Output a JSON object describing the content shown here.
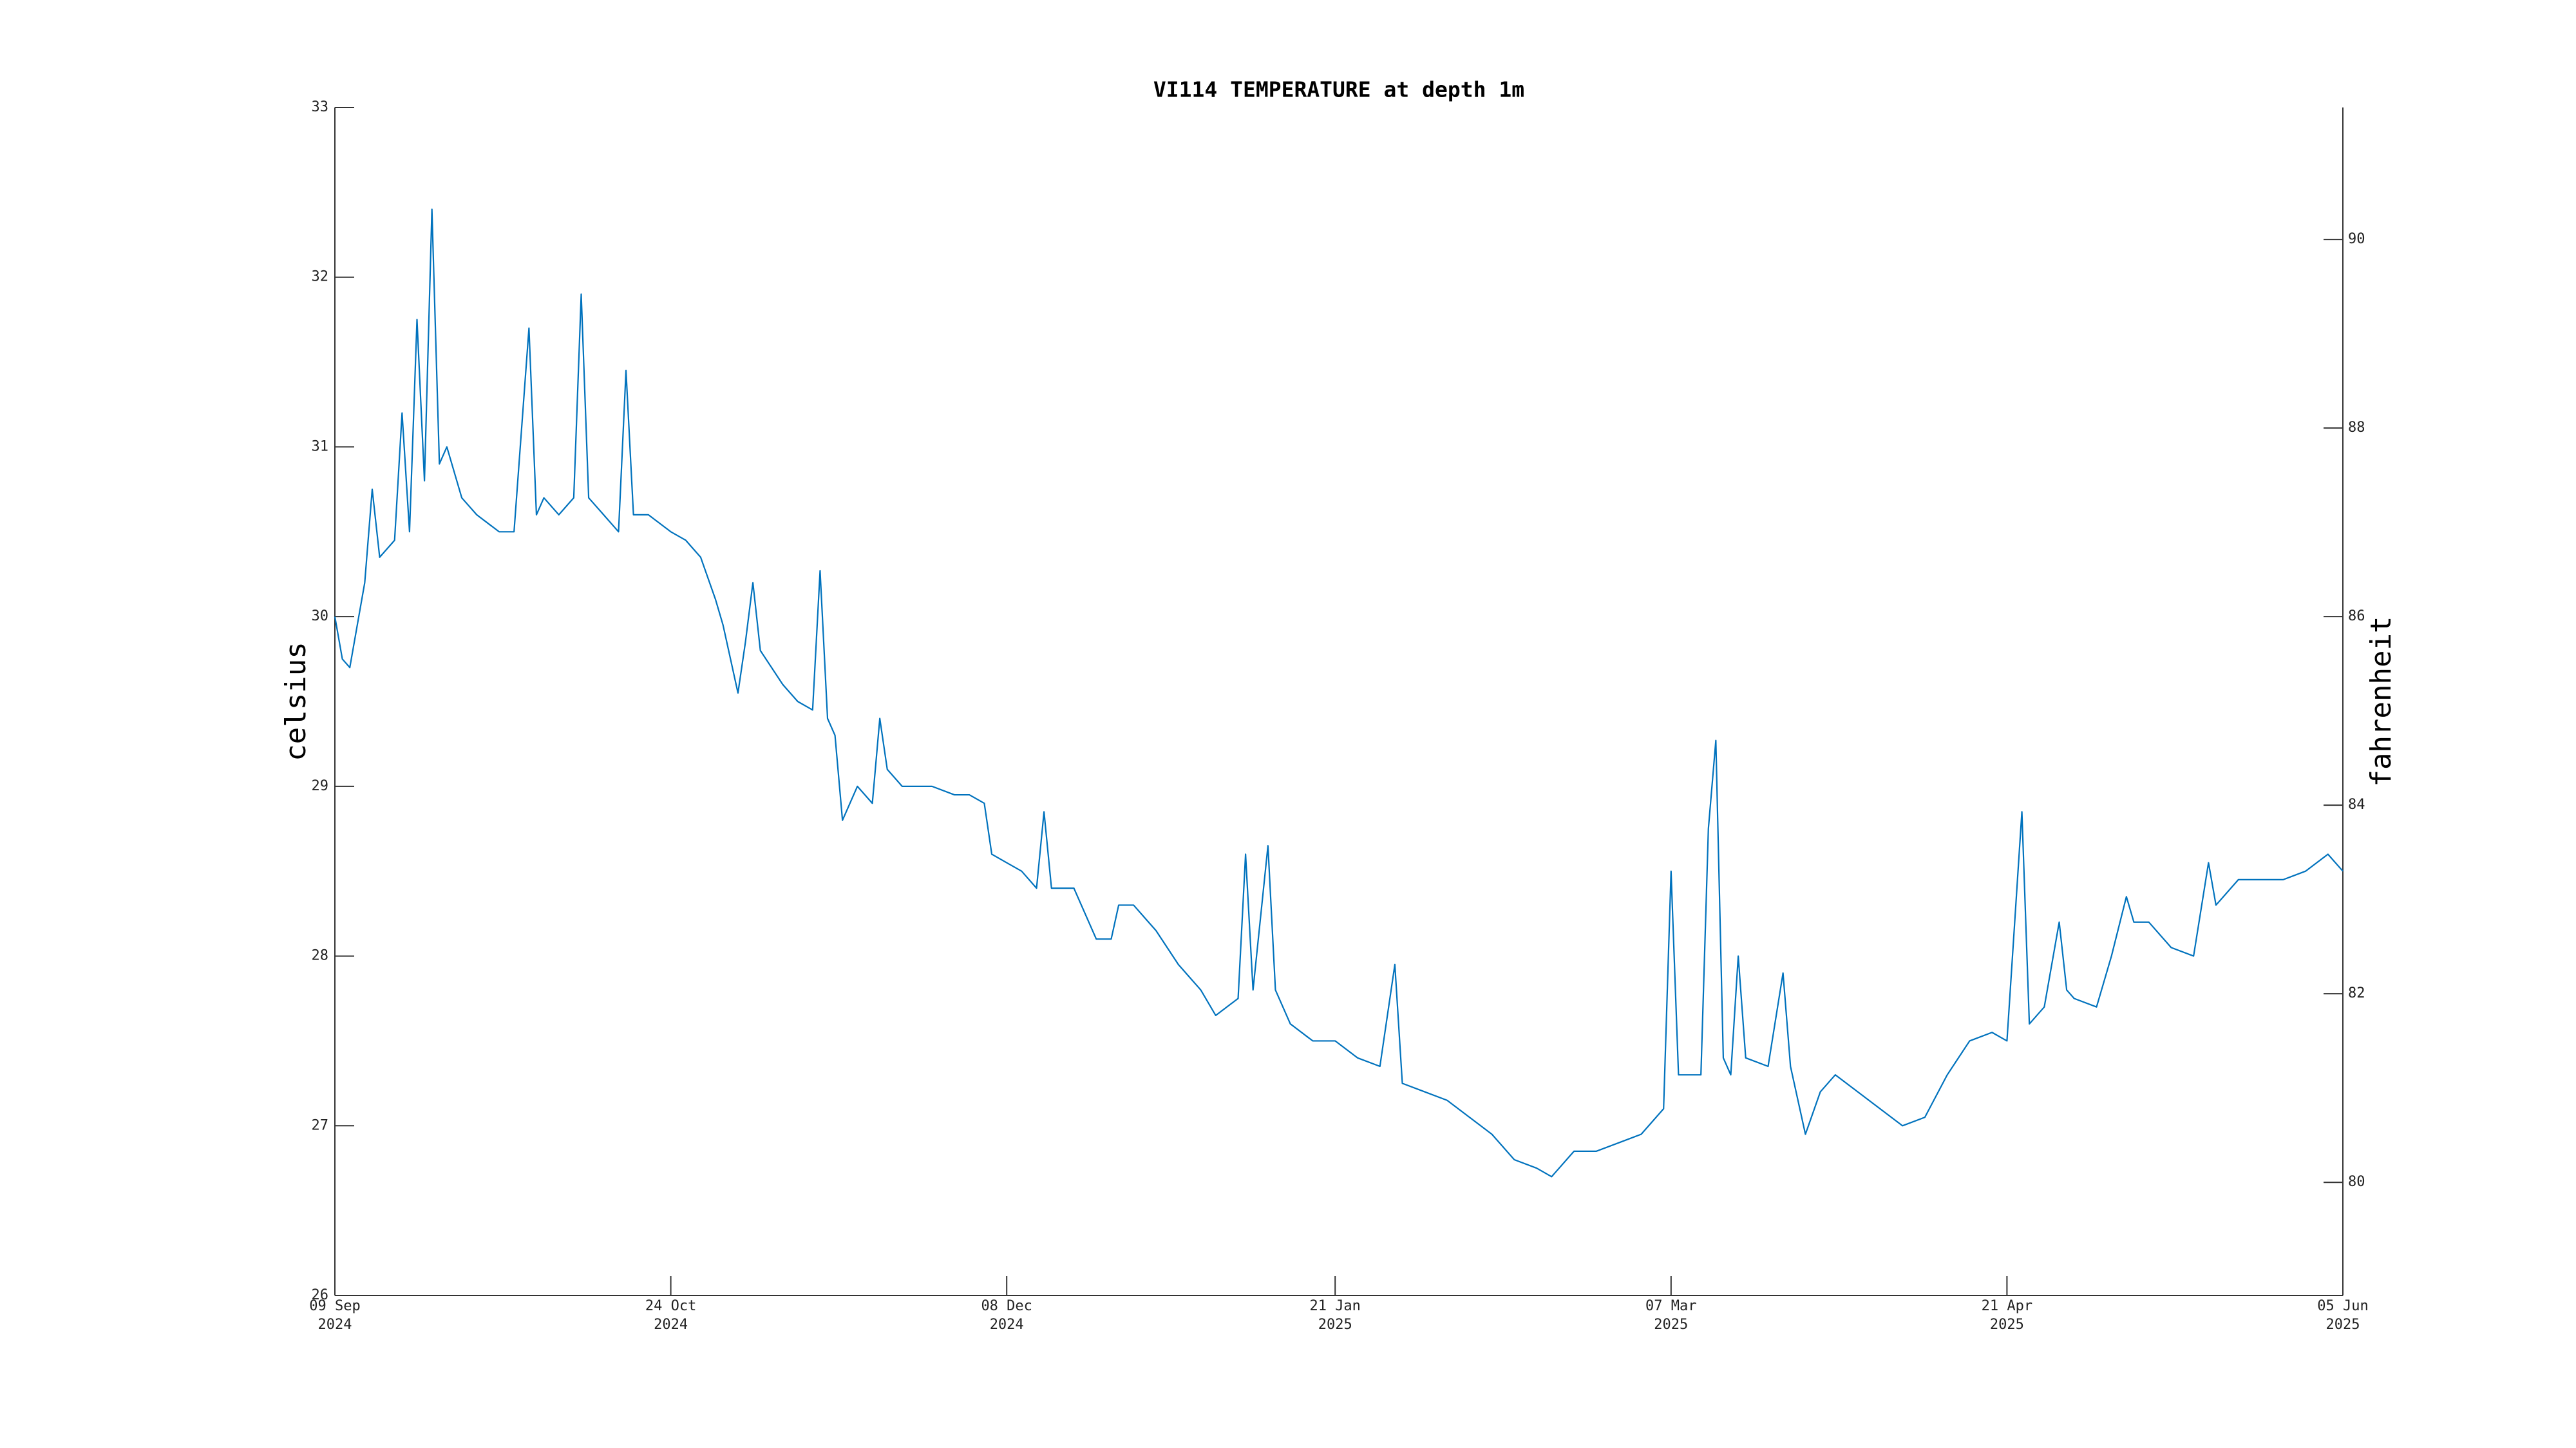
{
  "chart_data": {
    "type": "line",
    "title": "VI114 TEMPERATURE at depth 1m",
    "y_label": "celsius",
    "y2_label": "fahrenheit",
    "xlim": [
      "2024-09-09",
      "2025-06-05"
    ],
    "xticks": [
      {
        "value": "2024-09-09",
        "label": "09 Sep\n2024"
      },
      {
        "value": "2024-10-24",
        "label": "24 Oct\n2024"
      },
      {
        "value": "2024-12-08",
        "label": "08 Dec\n2024"
      },
      {
        "value": "2025-01-21",
        "label": "21 Jan\n2025"
      },
      {
        "value": "2025-03-07",
        "label": "07 Mar\n2025"
      },
      {
        "value": "2025-04-21",
        "label": "21 Apr\n2025"
      },
      {
        "value": "2025-06-05",
        "label": "05 Jun\n2025"
      }
    ],
    "ylim": [
      26,
      33
    ],
    "yticks": [
      26,
      27,
      28,
      29,
      30,
      31,
      32,
      33
    ],
    "y2lim": [
      78.8,
      91.4
    ],
    "y2ticks": [
      80,
      82,
      84,
      86,
      88,
      90
    ],
    "x": [
      "2024-09-09",
      "2024-09-10",
      "2024-09-11",
      "2024-09-13",
      "2024-09-14",
      "2024-09-15",
      "2024-09-17",
      "2024-09-18",
      "2024-09-19",
      "2024-09-20",
      "2024-09-21",
      "2024-09-22",
      "2024-09-23",
      "2024-09-24",
      "2024-09-26",
      "2024-09-28",
      "2024-10-01",
      "2024-10-03",
      "2024-10-05",
      "2024-10-06",
      "2024-10-07",
      "2024-10-09",
      "2024-10-11",
      "2024-10-12",
      "2024-10-13",
      "2024-10-15",
      "2024-10-17",
      "2024-10-18",
      "2024-10-19",
      "2024-10-21",
      "2024-10-24",
      "2024-10-26",
      "2024-10-28",
      "2024-10-30",
      "2024-10-31",
      "2024-11-02",
      "2024-11-03",
      "2024-11-04",
      "2024-11-05",
      "2024-11-08",
      "2024-11-10",
      "2024-11-12",
      "2024-11-13",
      "2024-11-14",
      "2024-11-15",
      "2024-11-16",
      "2024-11-18",
      "2024-11-20",
      "2024-11-21",
      "2024-11-22",
      "2024-11-24",
      "2024-11-26",
      "2024-11-28",
      "2024-12-01",
      "2024-12-03",
      "2024-12-05",
      "2024-12-06",
      "2024-12-08",
      "2024-12-10",
      "2024-12-12",
      "2024-12-13",
      "2024-12-14",
      "2024-12-17",
      "2024-12-20",
      "2024-12-22",
      "2024-12-23",
      "2024-12-25",
      "2024-12-28",
      "2024-12-31",
      "2025-01-03",
      "2025-01-05",
      "2025-01-08",
      "2025-01-09",
      "2025-01-10",
      "2025-01-12",
      "2025-01-13",
      "2025-01-15",
      "2025-01-18",
      "2025-01-21",
      "2025-01-24",
      "2025-01-27",
      "2025-01-29",
      "2025-01-30",
      "2025-02-02",
      "2025-02-05",
      "2025-02-08",
      "2025-02-11",
      "2025-02-14",
      "2025-02-17",
      "2025-02-19",
      "2025-02-22",
      "2025-02-25",
      "2025-02-28",
      "2025-03-03",
      "2025-03-06",
      "2025-03-07",
      "2025-03-08",
      "2025-03-09",
      "2025-03-11",
      "2025-03-12",
      "2025-03-13",
      "2025-03-14",
      "2025-03-15",
      "2025-03-16",
      "2025-03-17",
      "2025-03-20",
      "2025-03-22",
      "2025-03-23",
      "2025-03-25",
      "2025-03-27",
      "2025-03-29",
      "2025-04-01",
      "2025-04-04",
      "2025-04-07",
      "2025-04-10",
      "2025-04-13",
      "2025-04-16",
      "2025-04-19",
      "2025-04-21",
      "2025-04-23",
      "2025-04-24",
      "2025-04-26",
      "2025-04-28",
      "2025-04-29",
      "2025-04-30",
      "2025-05-03",
      "2025-05-05",
      "2025-05-07",
      "2025-05-08",
      "2025-05-10",
      "2025-05-13",
      "2025-05-16",
      "2025-05-18",
      "2025-05-19",
      "2025-05-22",
      "2025-05-25",
      "2025-05-28",
      "2025-05-31",
      "2025-06-03",
      "2025-06-05"
    ],
    "series": [
      {
        "color": "#0072bd",
        "values": [
          30.0,
          29.75,
          29.7,
          30.2,
          30.75,
          30.35,
          30.45,
          31.2,
          30.5,
          31.75,
          30.8,
          32.4,
          30.9,
          31.0,
          30.7,
          30.6,
          30.5,
          30.5,
          31.7,
          30.6,
          30.7,
          30.6,
          30.7,
          31.9,
          30.7,
          30.6,
          30.5,
          31.45,
          30.6,
          30.6,
          30.5,
          30.45,
          30.35,
          30.1,
          29.95,
          29.55,
          29.85,
          30.2,
          29.8,
          29.6,
          29.5,
          29.45,
          30.27,
          29.4,
          29.3,
          28.8,
          29.0,
          28.9,
          29.4,
          29.1,
          29.0,
          29.0,
          29.0,
          28.95,
          28.95,
          28.9,
          28.6,
          28.55,
          28.5,
          28.4,
          28.85,
          28.4,
          28.4,
          28.1,
          28.1,
          28.3,
          28.3,
          28.15,
          27.95,
          27.8,
          27.65,
          27.75,
          28.6,
          27.8,
          28.65,
          27.8,
          27.6,
          27.5,
          27.5,
          27.4,
          27.35,
          27.95,
          27.25,
          27.2,
          27.15,
          27.05,
          26.95,
          26.8,
          26.75,
          26.7,
          26.85,
          26.85,
          26.9,
          26.95,
          27.1,
          28.5,
          27.3,
          27.3,
          27.3,
          28.75,
          29.27,
          27.4,
          27.3,
          28.0,
          27.4,
          27.35,
          27.9,
          27.35,
          26.95,
          27.2,
          27.3,
          27.2,
          27.1,
          27.0,
          27.05,
          27.3,
          27.5,
          27.55,
          27.5,
          28.85,
          27.6,
          27.7,
          28.2,
          27.8,
          27.75,
          27.7,
          28.0,
          28.35,
          28.2,
          28.2,
          28.05,
          28.0,
          28.55,
          28.3,
          28.45,
          28.45,
          28.45,
          28.5,
          28.6,
          28.5
        ]
      }
    ]
  }
}
